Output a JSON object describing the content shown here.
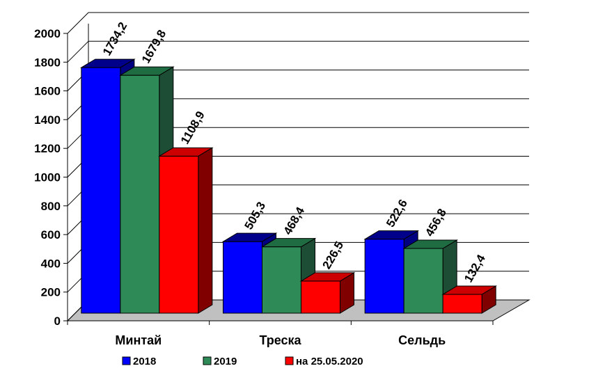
{
  "chart_data": {
    "type": "bar",
    "categories": [
      "Минтай",
      "Треска",
      "Сельдь"
    ],
    "series": [
      {
        "name": "2018",
        "values": [
          1734.2,
          505.3,
          522.6
        ],
        "labels": [
          "1734,2",
          "505,3",
          "522,6"
        ],
        "color": "#0000ff",
        "top_color": "#00008b",
        "side_color": "#000080"
      },
      {
        "name": "2019",
        "values": [
          1679.8,
          468.4,
          456.8
        ],
        "labels": [
          "1679,8",
          "468,4",
          "456,8"
        ],
        "color": "#2e8b57",
        "top_color": "#1f6b42",
        "side_color": "#1e4d36"
      },
      {
        "name": "на 25.05.2020",
        "values": [
          1108.9,
          226.5,
          132.4
        ],
        "labels": [
          "1108,9",
          "226,5",
          "132,4"
        ],
        "color": "#ff0000",
        "top_color": "#cc0000",
        "side_color": "#800000"
      }
    ],
    "ylim": [
      0,
      2000
    ],
    "y_ticks": [
      "0",
      "200",
      "400",
      "600",
      "800",
      "1000",
      "1200",
      "1400",
      "1600",
      "1800",
      "2000"
    ],
    "grid": true,
    "legend_position": "bottom",
    "three_d": true
  }
}
